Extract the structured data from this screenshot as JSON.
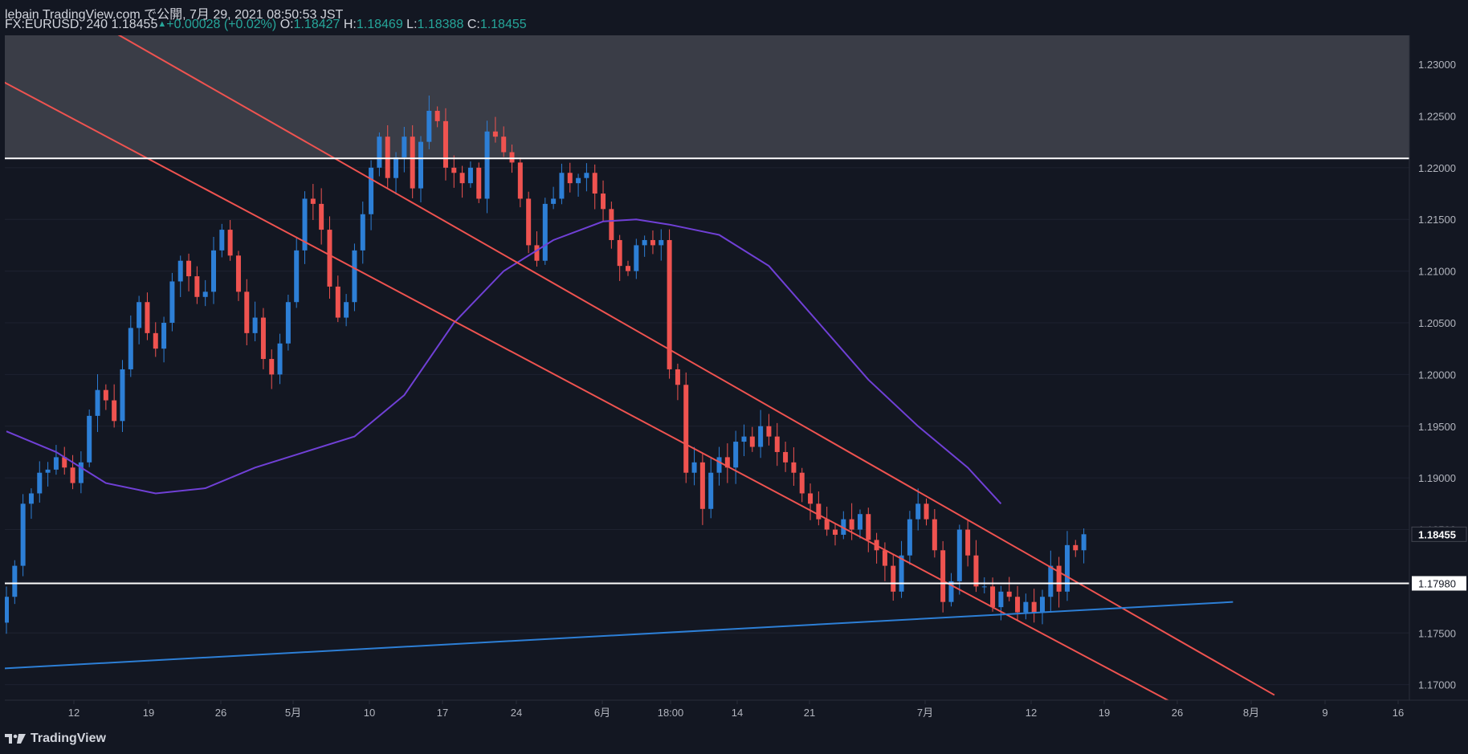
{
  "header": {
    "publisher_line": "lebain TradingView.com で公開, 7月 29, 2021 08:50:53 JST",
    "symbol": "FX:EURUSD, 240",
    "last": "1.18455",
    "change": "+0.00028 (+0.02%)",
    "o_label": "O:",
    "o_value": "1.18427",
    "h_label": "H:",
    "h_value": "1.18469",
    "l_label": "L:",
    "l_value": "1.18388",
    "c_label": "C:",
    "c_value": "1.18455"
  },
  "footer": {
    "logo_text": "TradingView"
  },
  "colors": {
    "background": "#131722",
    "bull": "#2d7fd6",
    "bear": "#ef5350",
    "ma": "#7040d6",
    "channel": "#ef5350",
    "trendline": "#2d7fd6",
    "level": "#ffffff",
    "zone": "#3a3d47",
    "grid": "#1e2230"
  },
  "chart_data": {
    "type": "candlestick",
    "y_range": [
      1.1685,
      1.2328
    ],
    "y_ticks": [
      "1.23000",
      "1.22500",
      "1.22000",
      "1.21500",
      "1.21000",
      "1.20500",
      "1.20000",
      "1.19500",
      "1.19000",
      "1.18500",
      "1.18000",
      "1.17500",
      "1.17000"
    ],
    "x_labels": [
      "12",
      "19",
      "26",
      "5月",
      "10",
      "17",
      "24",
      "6月",
      "18:00",
      "14",
      "21",
      "7月",
      "12",
      "19",
      "26",
      "8月",
      "9",
      "16"
    ],
    "last_price": 1.18455,
    "last_price_label": "1.18455",
    "level_label": "1.17980",
    "horizontal_levels": [
      1.2209,
      1.1798
    ],
    "resistance_zone": [
      1.2209,
      1.2328
    ],
    "closes": [
      1.1785,
      1.1815,
      1.1875,
      1.1885,
      1.1905,
      1.1908,
      1.192,
      1.191,
      1.1895,
      1.1915,
      1.196,
      1.1985,
      1.1975,
      1.1955,
      1.2005,
      1.2045,
      1.207,
      1.204,
      1.2025,
      1.205,
      1.209,
      1.211,
      1.2095,
      1.2075,
      1.208,
      1.212,
      1.214,
      1.2115,
      1.208,
      1.204,
      1.2055,
      1.2015,
      1.2,
      1.203,
      1.207,
      1.212,
      1.217,
      1.2165,
      1.214,
      1.2085,
      1.2055,
      1.207,
      1.212,
      1.2155,
      1.22,
      1.223,
      1.219,
      1.221,
      1.223,
      1.218,
      1.2225,
      1.2255,
      1.2245,
      1.22,
      1.2195,
      1.2185,
      1.22,
      1.217,
      1.2235,
      1.223,
      1.2215,
      1.2205,
      1.217,
      1.2125,
      1.211,
      1.2165,
      1.217,
      1.2195,
      1.2185,
      1.219,
      1.2195,
      1.2175,
      1.216,
      1.213,
      1.2105,
      1.21,
      1.2125,
      1.213,
      1.2125,
      1.213,
      1.2005,
      1.199,
      1.1905,
      1.1915,
      1.187,
      1.1905,
      1.192,
      1.191,
      1.1935,
      1.194,
      1.193,
      1.195,
      1.194,
      1.1925,
      1.1915,
      1.1905,
      1.1885,
      1.1875,
      1.186,
      1.185,
      1.1845,
      1.186,
      1.185,
      1.1865,
      1.184,
      1.183,
      1.1815,
      1.179,
      1.1825,
      1.186,
      1.1875,
      1.186,
      1.183,
      1.178,
      1.18,
      1.185,
      1.1825,
      1.1795,
      1.1795,
      1.1775,
      1.179,
      1.1785,
      1.177,
      1.178,
      1.177,
      1.1785,
      1.1815,
      1.179,
      1.1835,
      1.183,
      1.18455
    ],
    "ma_points": [
      [
        0,
        1.1945
      ],
      [
        6,
        1.1925
      ],
      [
        12,
        1.1895
      ],
      [
        18,
        1.1885
      ],
      [
        24,
        1.189
      ],
      [
        30,
        1.191
      ],
      [
        36,
        1.1925
      ],
      [
        42,
        1.194
      ],
      [
        48,
        1.198
      ],
      [
        54,
        1.205
      ],
      [
        60,
        1.21
      ],
      [
        66,
        1.213
      ],
      [
        72,
        1.2148
      ],
      [
        76,
        1.215
      ],
      [
        80,
        1.2145
      ],
      [
        86,
        1.2135
      ],
      [
        92,
        1.2105
      ],
      [
        98,
        1.205
      ],
      [
        104,
        1.1995
      ],
      [
        110,
        1.195
      ],
      [
        116,
        1.191
      ],
      [
        120,
        1.1875
      ]
    ],
    "channel_lines": [
      [
        [
          -2,
          1.229
        ],
        [
          146,
          1.166
        ]
      ],
      [
        [
          11,
          1.234
        ],
        [
          153,
          1.169
        ]
      ]
    ],
    "trend_line": [
      [
        -2,
        1.1715
      ],
      [
        148,
        1.178
      ]
    ]
  }
}
